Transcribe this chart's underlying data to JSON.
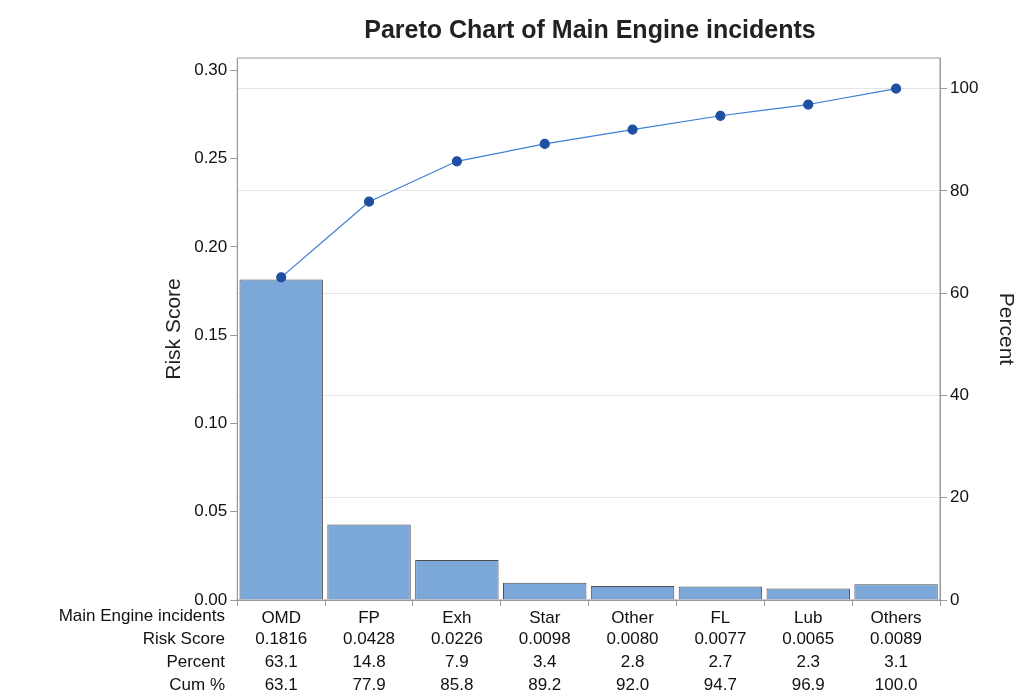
{
  "chart_data": {
    "type": "bar",
    "title": "Pareto Chart of Main Engine incidents",
    "xlabel": "Main Engine incidents",
    "ylabel": "Risk Score",
    "y2label": "Percent",
    "categories": [
      "OMD",
      "FP",
      "Exh",
      "Star",
      "Other",
      "FL",
      "Lub",
      "Others"
    ],
    "series": [
      {
        "name": "Risk Score",
        "color": "#7ba7d9",
        "values": [
          0.1816,
          0.0428,
          0.0226,
          0.0098,
          0.008,
          0.0077,
          0.0065,
          0.0089
        ],
        "value_labels": [
          "0.1816",
          "0.0428",
          "0.0226",
          "0.0098",
          "0.0080",
          "0.0077",
          "0.0065",
          "0.0089"
        ]
      },
      {
        "type": "line",
        "axis": "y2",
        "color": "#3f7fd4",
        "marker": "circle",
        "values": [
          63.1,
          77.9,
          85.8,
          89.2,
          92.0,
          94.7,
          96.9,
          100.0
        ],
        "value_labels": [
          "63.1",
          "77.9",
          "85.8",
          "89.2",
          "92.0",
          "94.7",
          "96.9",
          "100.0"
        ]
      }
    ],
    "ylim": [
      0,
      0.307
    ],
    "yticks": [
      {
        "value": 0,
        "label": "0.00"
      },
      {
        "value": 0.05,
        "label": "0.05"
      },
      {
        "value": 0.1,
        "label": "0.10"
      },
      {
        "value": 0.15,
        "label": "0.15"
      },
      {
        "value": 0.2,
        "label": "0.20"
      },
      {
        "value": 0.25,
        "label": "0.25"
      },
      {
        "value": 0.3,
        "label": "0.30"
      }
    ],
    "y2lim": [
      0,
      106
    ],
    "y2ticks": [
      0,
      20,
      40,
      60,
      80,
      100
    ],
    "grid": "y",
    "annotations": [
      "Percent",
      "63.1",
      "14.8",
      "7.9",
      "3.4",
      "2.8",
      "2.7",
      "2.3",
      "3.1",
      "Cum %"
    ]
  }
}
